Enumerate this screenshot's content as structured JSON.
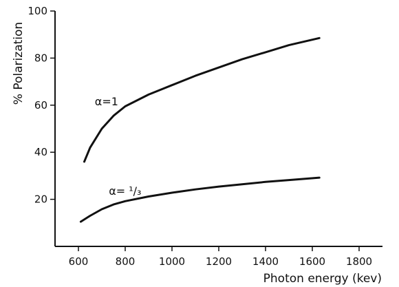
{
  "chart_data": {
    "type": "line",
    "title": "",
    "xlabel": "Photon energy (kev)",
    "ylabel": "% Polarization",
    "xlim": [
      500,
      1900
    ],
    "ylim": [
      0,
      100
    ],
    "xticks": [
      600,
      800,
      1000,
      1200,
      1400,
      1600,
      1800
    ],
    "yticks": [
      20,
      40,
      60,
      80,
      100
    ],
    "grid": false,
    "legend": "none",
    "series": [
      {
        "label": "α=1",
        "x": [
          625,
          650,
          700,
          750,
          800,
          900,
          1000,
          1100,
          1200,
          1300,
          1400,
          1500,
          1630
        ],
        "y": [
          36,
          42,
          50,
          55.5,
          59.5,
          64.5,
          68.5,
          72.5,
          76,
          79.5,
          82.5,
          85.5,
          88.5
        ]
      },
      {
        "label": "α=1/3",
        "x": [
          610,
          650,
          700,
          750,
          800,
          900,
          1000,
          1100,
          1200,
          1300,
          1400,
          1500,
          1630
        ],
        "y": [
          10.5,
          13,
          15.8,
          17.8,
          19.2,
          21.2,
          22.8,
          24.2,
          25.4,
          26.4,
          27.4,
          28.2,
          29.2
        ]
      }
    ],
    "annotations": [
      {
        "text": "α=1",
        "x": 670,
        "y": 60
      },
      {
        "text": "α= ¹/₃",
        "x": 730,
        "y": 22
      }
    ]
  }
}
